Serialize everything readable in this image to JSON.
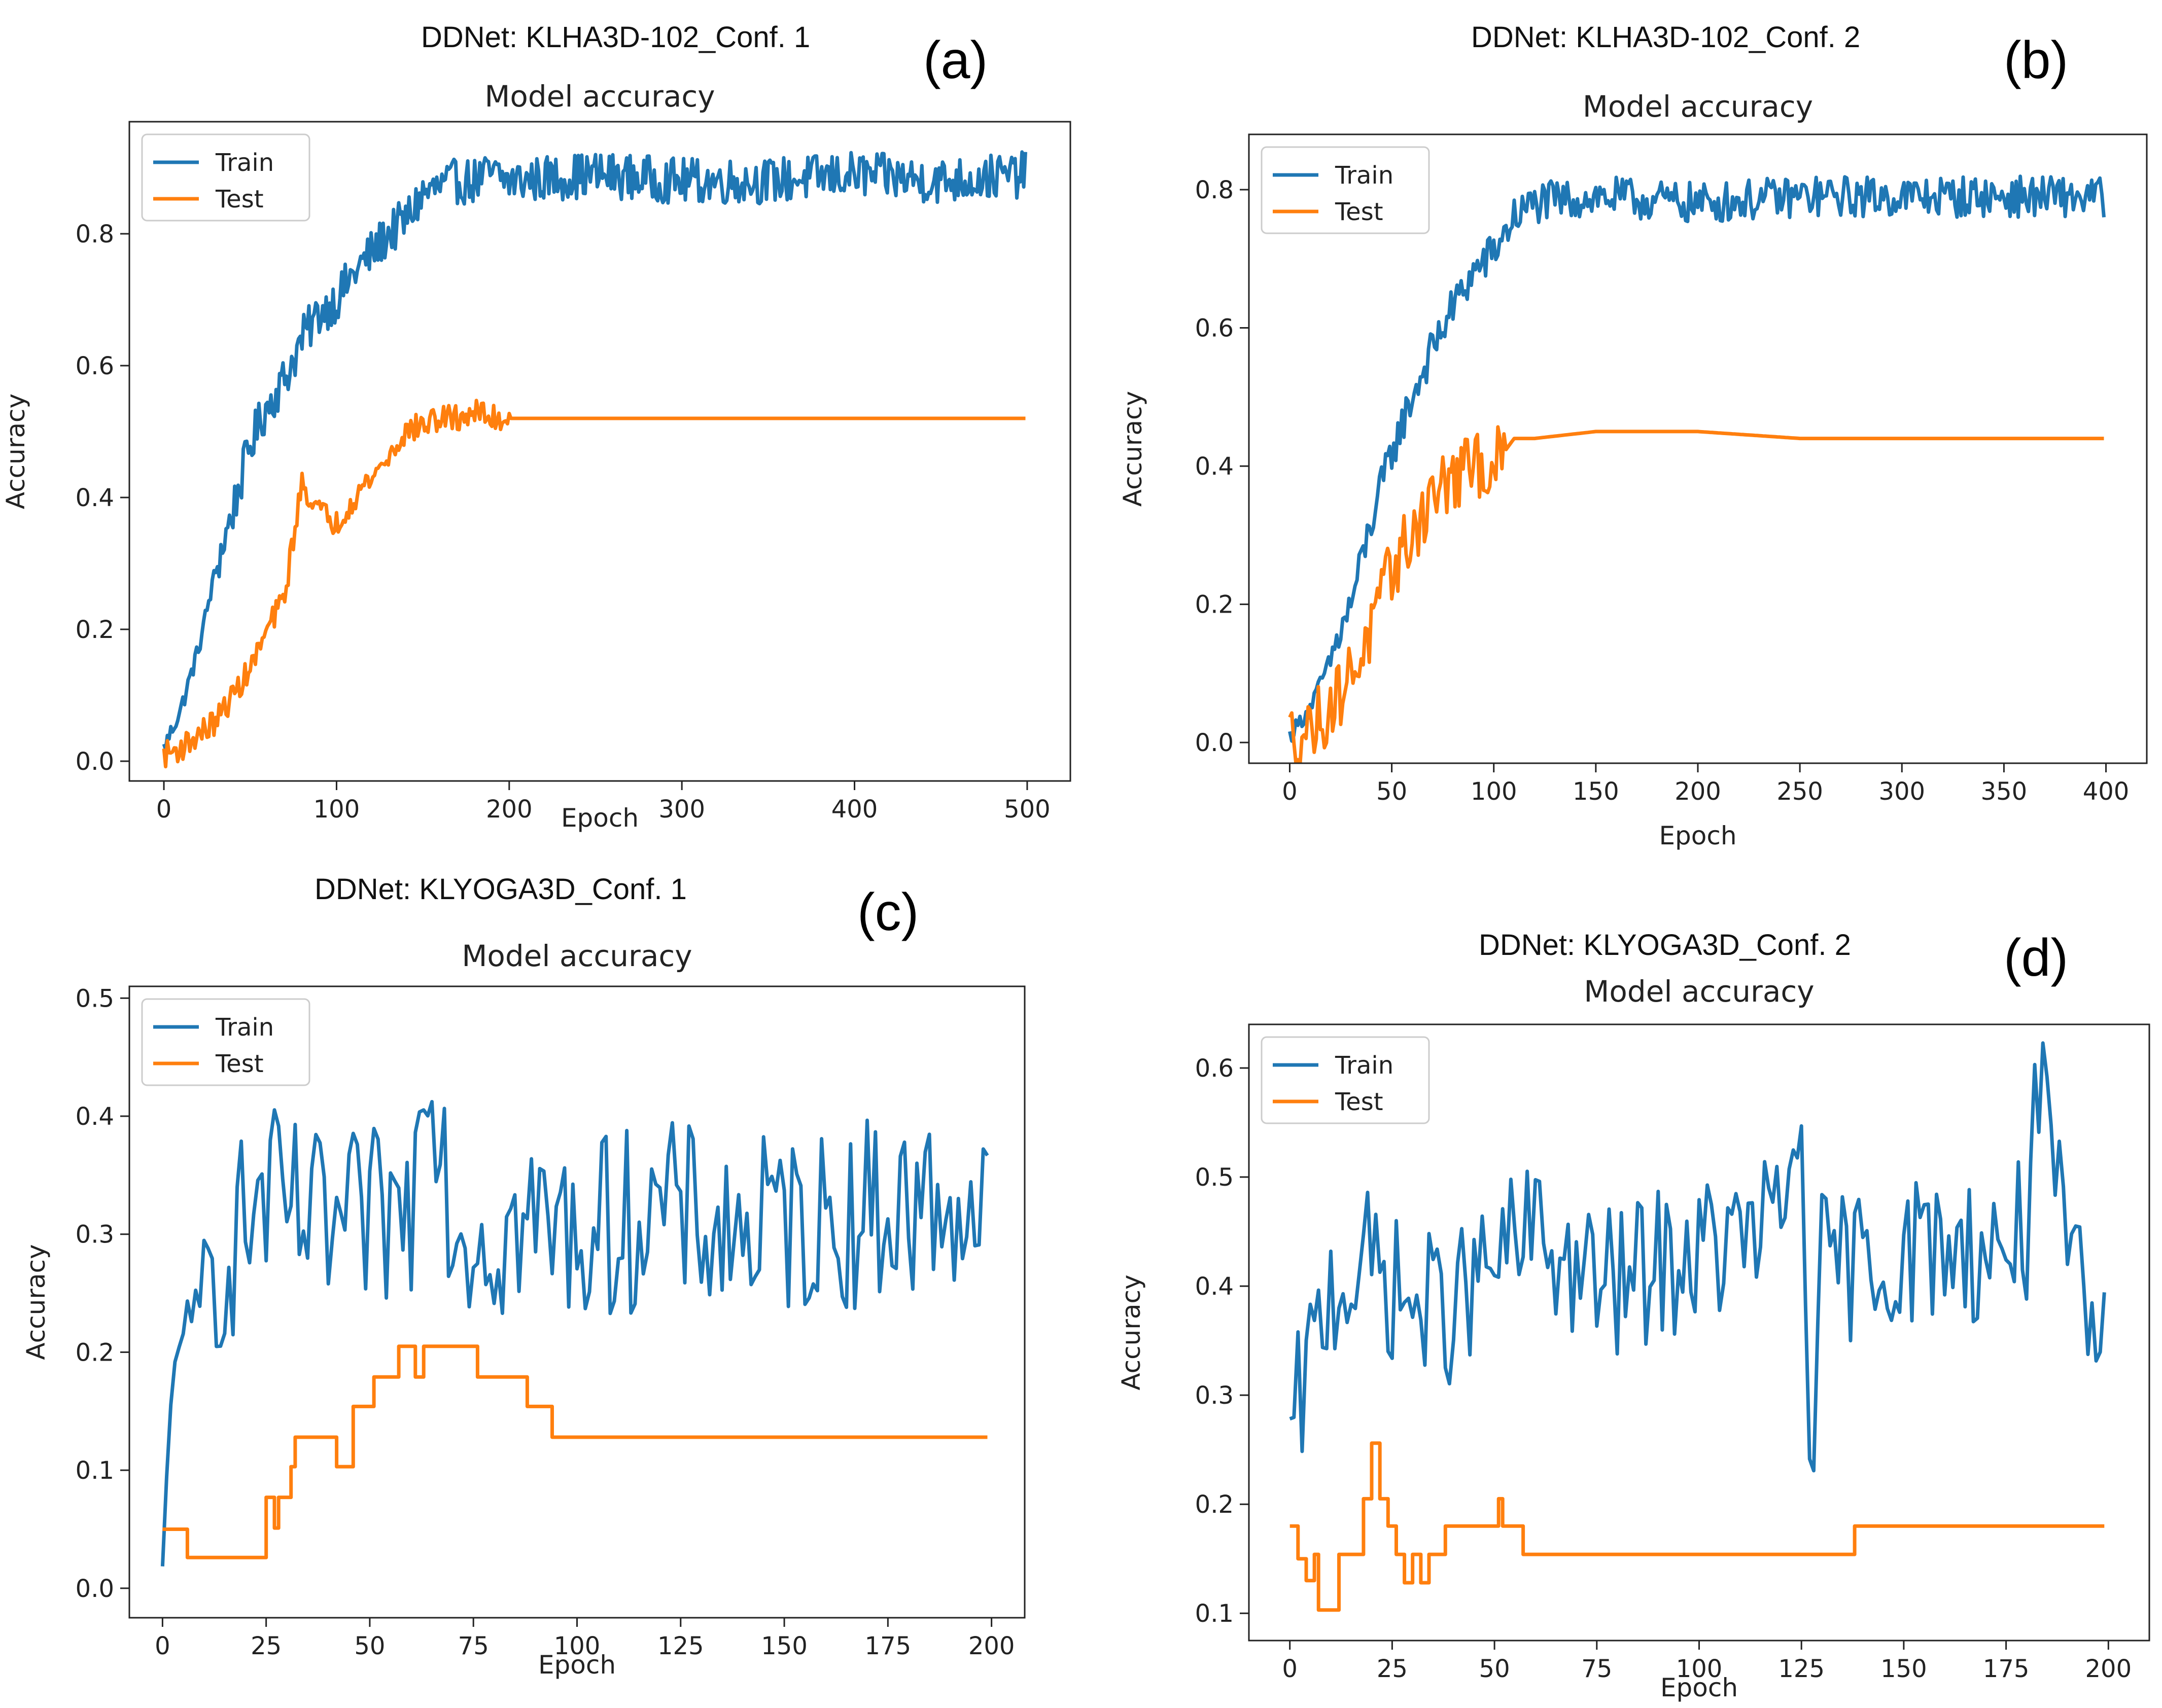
{
  "colors": {
    "train": "#1f77b4",
    "test": "#ff7f0e"
  },
  "chart_data": [
    {
      "id": "a",
      "type": "line",
      "panel_label": "(a)",
      "suptitle": "DDNet: KLHA3D-102_Conf. 1",
      "title": "Model accuracy",
      "xlabel": "Epoch",
      "ylabel": "Accuracy",
      "xlim": [
        -20,
        525
      ],
      "ylim": [
        -0.03,
        0.97
      ],
      "xticks": [
        0,
        100,
        200,
        300,
        400,
        500
      ],
      "yticks": [
        0.0,
        0.2,
        0.4,
        0.6,
        0.8
      ],
      "xtick_labels": [
        "0",
        "100",
        "200",
        "300",
        "400",
        "500"
      ],
      "ytick_labels": [
        "0.0",
        "0.2",
        "0.4",
        "0.6",
        "0.8"
      ],
      "legend": {
        "position": "top-left",
        "entries": [
          "Train",
          "Test"
        ]
      },
      "grid": false,
      "series": [
        {
          "name": "Train",
          "color": "#1f77b4",
          "x": [
            0,
            10,
            20,
            30,
            40,
            50,
            60,
            70,
            80,
            90,
            100,
            110,
            120,
            130,
            140,
            150,
            160,
            170,
            180,
            190,
            200,
            250,
            300,
            350,
            400,
            450,
            499
          ],
          "y": [
            0.02,
            0.08,
            0.17,
            0.29,
            0.38,
            0.48,
            0.54,
            0.58,
            0.64,
            0.68,
            0.7,
            0.74,
            0.77,
            0.8,
            0.82,
            0.86,
            0.87,
            0.88,
            0.88,
            0.89,
            0.88,
            0.89,
            0.88,
            0.88,
            0.89,
            0.88,
            0.89
          ],
          "noise": 0.035,
          "noise_from": 30
        },
        {
          "name": "Test",
          "color": "#ff7f0e",
          "x": [
            0,
            10,
            20,
            30,
            40,
            50,
            60,
            70,
            75,
            80,
            90,
            100,
            110,
            120,
            130,
            140,
            150,
            160,
            170,
            180,
            190,
            200,
            250,
            300,
            350,
            400,
            450,
            499
          ],
          "y": [
            0.01,
            0.02,
            0.04,
            0.06,
            0.1,
            0.14,
            0.2,
            0.25,
            0.34,
            0.42,
            0.38,
            0.36,
            0.4,
            0.43,
            0.46,
            0.5,
            0.51,
            0.52,
            0.52,
            0.53,
            0.52,
            0.52,
            0.52,
            0.52,
            0.52,
            0.52,
            0.52,
            0.52
          ],
          "noise": 0.02,
          "noise_until": 200
        }
      ]
    },
    {
      "id": "b",
      "type": "line",
      "panel_label": "(b)",
      "suptitle": "DDNet: KLHA3D-102_Conf. 2",
      "title": "Model accuracy",
      "xlabel": "Epoch",
      "ylabel": "Accuracy",
      "xlim": [
        -20,
        420
      ],
      "ylim": [
        -0.03,
        0.88
      ],
      "xticks": [
        0,
        50,
        100,
        150,
        200,
        250,
        300,
        350,
        400
      ],
      "yticks": [
        0.0,
        0.2,
        0.4,
        0.6,
        0.8
      ],
      "xtick_labels": [
        "0",
        "50",
        "100",
        "150",
        "200",
        "250",
        "300",
        "350",
        "400"
      ],
      "ytick_labels": [
        "0.0",
        "0.2",
        "0.4",
        "0.6",
        "0.8"
      ],
      "legend": {
        "position": "top-left",
        "entries": [
          "Train",
          "Test"
        ]
      },
      "grid": false,
      "series": [
        {
          "name": "Train",
          "color": "#1f77b4",
          "x": [
            0,
            10,
            20,
            30,
            40,
            50,
            60,
            70,
            80,
            90,
            100,
            110,
            120,
            150,
            200,
            250,
            300,
            350,
            399
          ],
          "y": [
            0.01,
            0.05,
            0.12,
            0.2,
            0.32,
            0.42,
            0.5,
            0.57,
            0.63,
            0.68,
            0.71,
            0.76,
            0.78,
            0.79,
            0.78,
            0.79,
            0.79,
            0.79,
            0.79
          ],
          "noise": 0.03,
          "noise_from": 20
        },
        {
          "name": "Test",
          "color": "#ff7f0e",
          "x": [
            0,
            10,
            20,
            30,
            40,
            50,
            60,
            70,
            80,
            90,
            100,
            110,
            120,
            150,
            200,
            250,
            300,
            350,
            399
          ],
          "y": [
            0.01,
            0.02,
            0.05,
            0.1,
            0.16,
            0.25,
            0.3,
            0.36,
            0.38,
            0.4,
            0.4,
            0.44,
            0.44,
            0.45,
            0.45,
            0.44,
            0.44,
            0.44,
            0.44
          ],
          "noise": 0.05,
          "noise_until": 105
        }
      ]
    },
    {
      "id": "c",
      "type": "line",
      "panel_label": "(c)",
      "suptitle": "DDNet: KLYOGA3D_Conf. 1",
      "title": "Model accuracy",
      "xlabel": "Epoch",
      "ylabel": "Accuracy",
      "xlim": [
        -8,
        208
      ],
      "ylim": [
        -0.025,
        0.51
      ],
      "xticks": [
        0,
        25,
        50,
        75,
        100,
        125,
        150,
        175,
        200
      ],
      "yticks": [
        0.0,
        0.1,
        0.2,
        0.3,
        0.4,
        0.5
      ],
      "xtick_labels": [
        "0",
        "25",
        "50",
        "75",
        "100",
        "125",
        "150",
        "175",
        "200"
      ],
      "ytick_labels": [
        "0.0",
        "0.1",
        "0.2",
        "0.3",
        "0.4",
        "0.5"
      ],
      "legend": {
        "position": "top-left",
        "entries": [
          "Train",
          "Test"
        ]
      },
      "grid": false,
      "series": [
        {
          "name": "Train",
          "color": "#1f77b4",
          "x": [
            0,
            2,
            4,
            6,
            8,
            10,
            15,
            20,
            25,
            30,
            40,
            50,
            60,
            64,
            70,
            80,
            90,
            100,
            110,
            120,
            130,
            140,
            150,
            160,
            170,
            180,
            190,
            199
          ],
          "y": [
            0.0,
            0.15,
            0.23,
            0.22,
            0.18,
            0.26,
            0.28,
            0.31,
            0.33,
            0.32,
            0.3,
            0.31,
            0.32,
            0.48,
            0.31,
            0.3,
            0.31,
            0.3,
            0.31,
            0.32,
            0.31,
            0.3,
            0.31,
            0.31,
            0.32,
            0.32,
            0.33,
            0.31
          ],
          "noise": 0.08,
          "noise_from": 8
        },
        {
          "name": "Test",
          "color": "#ff7f0e",
          "x": [
            0,
            5,
            6,
            24,
            25,
            27,
            28,
            31,
            32,
            40,
            42,
            45,
            46,
            50,
            51,
            56,
            57,
            60,
            61,
            63,
            64,
            75,
            76,
            87,
            88,
            93,
            94,
            199
          ],
          "y": [
            0.05,
            0.05,
            0.026,
            0.026,
            0.077,
            0.051,
            0.077,
            0.103,
            0.128,
            0.128,
            0.103,
            0.103,
            0.154,
            0.154,
            0.179,
            0.179,
            0.205,
            0.205,
            0.179,
            0.205,
            0.205,
            0.205,
            0.179,
            0.179,
            0.154,
            0.154,
            0.128,
            0.128
          ],
          "noise": 0,
          "step": true
        }
      ]
    },
    {
      "id": "d",
      "type": "line",
      "panel_label": "(d)",
      "suptitle": "DDNet: KLYOGA3D_Conf. 2",
      "title": "Model accuracy",
      "xlabel": "Epoch",
      "ylabel": "Accuracy",
      "xlim": [
        -10,
        210
      ],
      "ylim": [
        0.075,
        0.64
      ],
      "xticks": [
        0,
        25,
        50,
        75,
        100,
        125,
        150,
        175,
        200
      ],
      "yticks": [
        0.1,
        0.2,
        0.3,
        0.4,
        0.5,
        0.6
      ],
      "xtick_labels": [
        "0",
        "25",
        "50",
        "75",
        "100",
        "125",
        "150",
        "175",
        "200"
      ],
      "ytick_labels": [
        "0.1",
        "0.2",
        "0.3",
        "0.4",
        "0.5",
        "0.6"
      ],
      "legend": {
        "position": "top-left",
        "entries": [
          "Train",
          "Test"
        ]
      },
      "grid": false,
      "series": [
        {
          "name": "Train",
          "color": "#1f77b4",
          "x": [
            0,
            10,
            20,
            30,
            40,
            50,
            60,
            70,
            80,
            90,
            100,
            110,
            120,
            125,
            128,
            130,
            140,
            150,
            160,
            170,
            180,
            182,
            190,
            199
          ],
          "y": [
            0.26,
            0.4,
            0.42,
            0.38,
            0.38,
            0.42,
            0.45,
            0.41,
            0.4,
            0.42,
            0.43,
            0.44,
            0.46,
            0.55,
            0.18,
            0.42,
            0.42,
            0.43,
            0.44,
            0.43,
            0.45,
            0.6,
            0.42,
            0.33
          ],
          "noise": 0.07,
          "noise_from": 2
        },
        {
          "name": "Test",
          "color": "#ff7f0e",
          "x": [
            0,
            2,
            4,
            6,
            7,
            9,
            12,
            16,
            18,
            20,
            22,
            24,
            26,
            28,
            30,
            32,
            34,
            36,
            38,
            40,
            50,
            51,
            52,
            56,
            57,
            137,
            138,
            199
          ],
          "y": [
            0.18,
            0.15,
            0.13,
            0.154,
            0.103,
            0.103,
            0.154,
            0.154,
            0.205,
            0.256,
            0.205,
            0.18,
            0.154,
            0.128,
            0.154,
            0.128,
            0.154,
            0.154,
            0.18,
            0.18,
            0.18,
            0.205,
            0.18,
            0.18,
            0.154,
            0.154,
            0.18,
            0.18
          ],
          "noise": 0,
          "step": true
        }
      ]
    }
  ]
}
